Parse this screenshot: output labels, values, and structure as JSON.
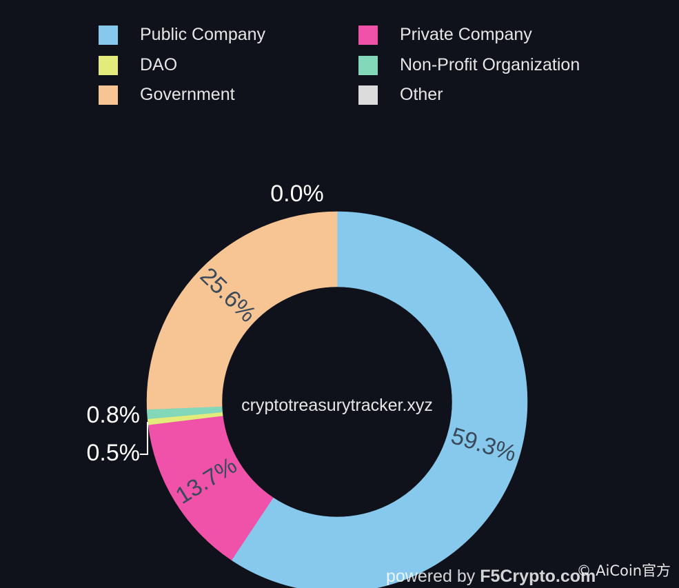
{
  "chart_data": {
    "type": "pie",
    "donut": true,
    "legend_placement": "top",
    "slices": [
      {
        "label": "Public Company",
        "value": 59.3,
        "display": "59.3%",
        "color": "#87c9ec"
      },
      {
        "label": "Private Company",
        "value": 13.7,
        "display": "13.7%",
        "color": "#f052a9"
      },
      {
        "label": "DAO",
        "value": 0.5,
        "display": "0.5%",
        "color": "#e3ec7a"
      },
      {
        "label": "Non-Profit Organization",
        "value": 0.8,
        "display": "0.8%",
        "color": "#83d8ba"
      },
      {
        "label": "Government",
        "value": 25.6,
        "display": "25.6%",
        "color": "#f7c594"
      },
      {
        "label": "Other",
        "value": 0.0,
        "display": "0.0%",
        "color": "#dcdcdc"
      }
    ],
    "center_text": "cryptotreasurytracker.xyz"
  },
  "legend": [
    {
      "label": "Public Company",
      "color": "#87c9ec"
    },
    {
      "label": "Private Company",
      "color": "#f052a9"
    },
    {
      "label": "DAO",
      "color": "#e3ec7a"
    },
    {
      "label": "Non-Profit Organization",
      "color": "#83d8ba"
    },
    {
      "label": "Government",
      "color": "#f7c594"
    },
    {
      "label": "Other",
      "color": "#dcdcdc"
    }
  ],
  "footer": {
    "powered_prefix": "powered by",
    "powered_brand": "F5Crypto.com",
    "watermark": "© AiCoin官方"
  }
}
